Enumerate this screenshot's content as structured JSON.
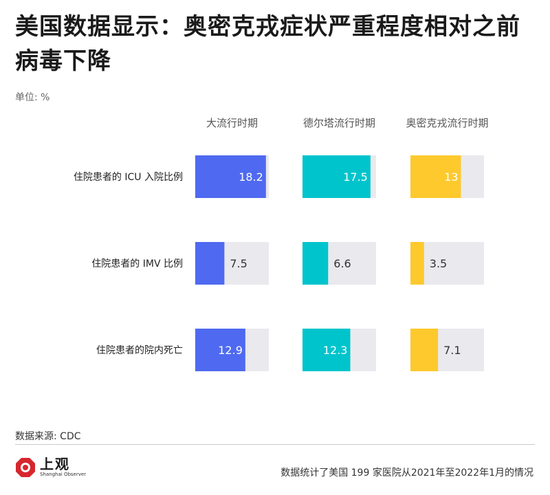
{
  "title": "美国数据显示：奥密克戎症状严重程度相对之前病毒下降",
  "unit_label": "单位: %",
  "source": "数据来源: CDC",
  "note": "数据统计了美国 199 家医院从2021年至2022年1月的情况",
  "logo": {
    "name_cn": "上观",
    "name_en": "Shanghai Observer",
    "icon": "shanghai-observer-logo",
    "color": "#d7262e"
  },
  "chart_data": {
    "type": "bar",
    "ylim": [
      0,
      20
    ],
    "categories": [
      "住院患者的 ICU 入院比例",
      "住院患者的 IMV 比例",
      "住院患者的院内死亡"
    ],
    "series": [
      {
        "name": "大流行时期",
        "color": "#4f6af0",
        "values": [
          18.2,
          7.5,
          12.9
        ]
      },
      {
        "name": "德尔塔流行时期",
        "color": "#00c4cc",
        "values": [
          17.5,
          6.6,
          12.3
        ]
      },
      {
        "name": "奥密克戎流行时期",
        "color": "#fec92d",
        "values": [
          13,
          3.5,
          7.1
        ]
      }
    ],
    "track_color": "#e9e9ee"
  }
}
